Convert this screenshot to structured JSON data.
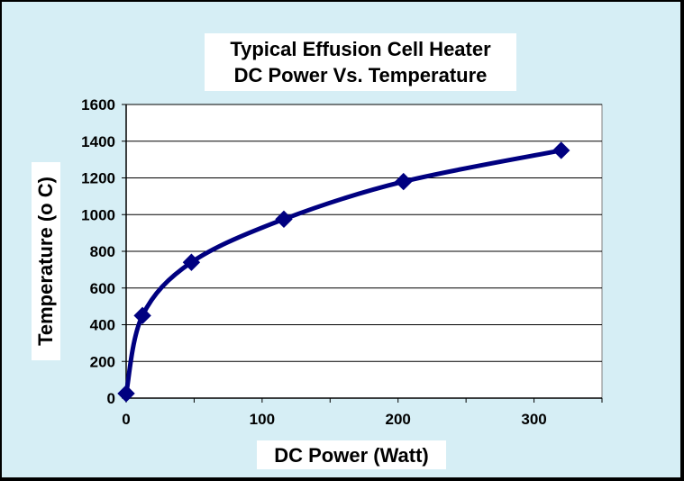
{
  "chart_data": {
    "type": "line",
    "title": "Typical Effusion Cell Heater",
    "subtitle": "DC Power Vs. Temperature",
    "xlabel": "DC Power (Watt)",
    "ylabel": "Temperature (o C)",
    "xlim": [
      0,
      350
    ],
    "ylim": [
      0,
      1600
    ],
    "xticks": [
      0,
      100,
      200,
      300
    ],
    "yticks": [
      0,
      200,
      400,
      600,
      800,
      1000,
      1200,
      1400,
      1600
    ],
    "grid": true,
    "legend": "none",
    "series": [
      {
        "name": "Temperature",
        "color": "#000080",
        "marker": "diamond",
        "points": [
          {
            "x": 0,
            "y": 25
          },
          {
            "x": 12,
            "y": 450
          },
          {
            "x": 48,
            "y": 740
          },
          {
            "x": 116,
            "y": 975
          },
          {
            "x": 204,
            "y": 1180
          },
          {
            "x": 320,
            "y": 1350
          }
        ]
      }
    ]
  },
  "colors": {
    "frame_background": "#d6eef5",
    "plot_background": "#ffffff",
    "series": "#000080"
  }
}
